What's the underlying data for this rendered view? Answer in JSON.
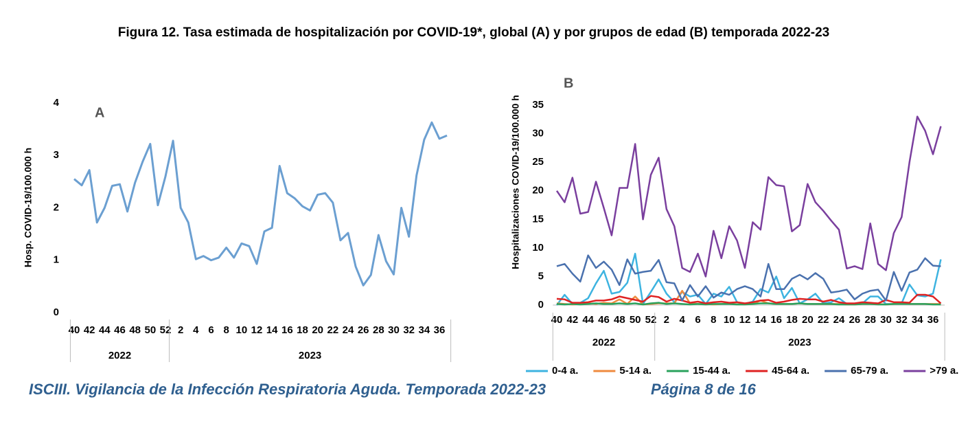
{
  "title": "Figura 12. Tasa estimada de hospitalización por COVID-19*, global (A) y por grupos de edad (B) temporada 2022-23",
  "footer": {
    "left": "ISCIII. Vigilancia de la Infección Respiratoria Aguda. Temporada 2022-23",
    "right": "Página 8 de 16"
  },
  "chart_data": [
    {
      "type": "line",
      "panel_label": "A",
      "y_label": "Hosp. COVID-19/100.000 h",
      "categories": [
        "40",
        null,
        "42",
        null,
        "44",
        null,
        "46",
        null,
        "48",
        null,
        "50",
        null,
        "52",
        null,
        "2",
        null,
        "4",
        null,
        "6",
        null,
        "8",
        null,
        "10",
        null,
        "12",
        null,
        "14",
        null,
        "16",
        null,
        "18",
        null,
        "20",
        null,
        "22",
        null,
        "24",
        null,
        "26",
        null,
        "28",
        null,
        "30",
        null,
        "32",
        null,
        "34",
        null,
        "36",
        null
      ],
      "x_groups": [
        {
          "label": "2022",
          "span": 13
        },
        {
          "label": "2023",
          "span": 37
        }
      ],
      "color": "#6b9fd1",
      "values": [
        2.55,
        2.43,
        2.72,
        1.72,
        2.0,
        2.42,
        2.45,
        1.93,
        2.48,
        2.88,
        3.22,
        2.05,
        2.6,
        3.28,
        2.0,
        1.72,
        1.02,
        1.08,
        1.0,
        1.05,
        1.24,
        1.05,
        1.32,
        1.27,
        0.93,
        1.55,
        1.62,
        2.8,
        2.28,
        2.18,
        2.03,
        1.95,
        2.25,
        2.28,
        2.1,
        1.38,
        1.52,
        0.88,
        0.52,
        0.72,
        1.48,
        0.98,
        0.73,
        2.0,
        1.45,
        2.62,
        3.3,
        3.63,
        3.32,
        3.38
      ],
      "ylim": [
        0,
        4
      ],
      "yticks": [
        0,
        1,
        2,
        3,
        4
      ],
      "grid": false
    },
    {
      "type": "line",
      "panel_label": "B",
      "y_label": "Hospitalizaciones  COVID-19/100.000 h",
      "categories": [
        "40",
        null,
        "42",
        null,
        "44",
        null,
        "46",
        null,
        "48",
        null,
        "50",
        null,
        "52",
        null,
        "2",
        null,
        "4",
        null,
        "6",
        null,
        "8",
        null,
        "10",
        null,
        "12",
        null,
        "14",
        null,
        "16",
        null,
        "18",
        null,
        "20",
        null,
        "22",
        null,
        "24",
        null,
        "26",
        null,
        "28",
        null,
        "30",
        null,
        "32",
        null,
        "34",
        null,
        "36",
        null
      ],
      "x_groups": [
        {
          "label": "2022",
          "span": 13
        },
        {
          "label": "2023",
          "span": 37
        }
      ],
      "ylim": [
        0,
        35
      ],
      "yticks": [
        0,
        5,
        10,
        15,
        20,
        25,
        30,
        35
      ],
      "grid": false,
      "legend": "bottom",
      "series": [
        {
          "name": "0-4 a.",
          "color": "#3db3e0",
          "values": [
            0,
            1.8,
            0.2,
            0.4,
            1.2,
            3.8,
            6,
            2,
            2.3,
            3.9,
            9,
            0.2,
            2.3,
            4.5,
            2,
            0.5,
            2.3,
            1.5,
            1.8,
            0.2,
            2,
            1.5,
            3.2,
            0.5,
            0.2,
            0.6,
            2.8,
            2.2,
            5,
            1.2,
            3,
            0.3,
            1,
            2,
            0.3,
            0.5,
            1.2,
            0.2,
            0.2,
            0.3,
            1.5,
            1.5,
            0.2,
            0.2,
            0.3,
            3.6,
            1.7,
            1.5,
            2,
            8
          ]
        },
        {
          "name": "5-14 a.",
          "color": "#ef8a3e",
          "values": [
            0.3,
            0.2,
            0.1,
            0.2,
            0.3,
            0.2,
            0.4,
            0.3,
            1,
            0.2,
            1.5,
            0.1,
            0.2,
            0.3,
            0.3,
            0.3,
            2.5,
            0.3,
            0.2,
            0.2,
            0.1,
            0.2,
            0.3,
            0.1,
            0.2,
            0.2,
            0.8,
            0.3,
            0.2,
            0.2,
            0.2,
            0.3,
            0.2,
            0.2,
            0.2,
            0.2,
            0.2,
            0.1,
            0.1,
            0.2,
            0.2,
            0.2,
            0.1,
            0.2,
            0.3,
            0.2,
            0.2,
            0.2,
            0.2,
            0.2
          ]
        },
        {
          "name": "15-44 a.",
          "color": "#2aa25c",
          "values": [
            0.2,
            0.1,
            0.2,
            0.1,
            0.2,
            0.3,
            0.2,
            0.2,
            0.3,
            0.2,
            0.3,
            0.1,
            0.3,
            0.4,
            0.2,
            0.3,
            0.2,
            0.1,
            0.2,
            0.1,
            0.2,
            0.2,
            0.2,
            0.1,
            0.1,
            0.2,
            0.3,
            0.3,
            0.2,
            0.2,
            0.2,
            0.3,
            0.2,
            0.2,
            0.2,
            0.2,
            0.1,
            0.1,
            0.1,
            0.2,
            0.2,
            0.1,
            0.1,
            0.2,
            0.2,
            0.2,
            0.2,
            0.2,
            0.1,
            0.1
          ]
        },
        {
          "name": "45-64 a.",
          "color": "#df2222",
          "values": [
            1.1,
            1,
            0.4,
            0.4,
            0.5,
            0.8,
            0.8,
            1,
            1.5,
            1.2,
            0.9,
            0.6,
            1.6,
            1.4,
            0.6,
            1.1,
            0.8,
            0.4,
            0.6,
            0.3,
            0.5,
            0.6,
            0.4,
            0.5,
            0.3,
            0.5,
            0.8,
            0.9,
            0.4,
            0.6,
            0.9,
            1.1,
            1,
            1,
            0.6,
            0.9,
            0.5,
            0.3,
            0.3,
            0.5,
            0.4,
            0.3,
            0.9,
            0.5,
            0.5,
            0.4,
            1.8,
            1.8,
            1.5,
            0.3
          ]
        },
        {
          "name": "65-79 a.",
          "color": "#4a71ae",
          "values": [
            6.8,
            7.2,
            5.5,
            4.1,
            8.7,
            6.5,
            7.6,
            6.2,
            3.5,
            8,
            5.5,
            5.8,
            6,
            7.9,
            4,
            3.8,
            0.8,
            3.5,
            1.5,
            3.3,
            1.3,
            2.2,
            1.8,
            2.8,
            3.3,
            2.8,
            1.5,
            7.2,
            2.8,
            2.8,
            4.6,
            5.3,
            4.5,
            5.6,
            4.6,
            2.2,
            2.4,
            2.7,
            1,
            2,
            2.5,
            2.7,
            0.8,
            5.8,
            2.5,
            5.7,
            6.2,
            8.2,
            6.9,
            6.8
          ]
        },
        {
          "name": ">79 a.",
          "color": "#7a3f9e",
          "values": [
            20,
            18,
            22.3,
            16,
            16.3,
            21.6,
            17,
            12.2,
            20.5,
            20.5,
            28.2,
            15,
            22.8,
            25.8,
            16.8,
            13.8,
            6.5,
            5.8,
            9,
            5,
            13,
            8.2,
            13.8,
            11.3,
            6.5,
            14.5,
            13.2,
            22.4,
            21,
            20.8,
            12.9,
            14,
            21.2,
            18,
            16.5,
            14.8,
            13.2,
            6.4,
            6.8,
            6.3,
            14.3,
            7.2,
            6.1,
            12.6,
            15.4,
            25,
            33,
            30.5,
            26.4,
            31.3
          ]
        }
      ]
    }
  ]
}
